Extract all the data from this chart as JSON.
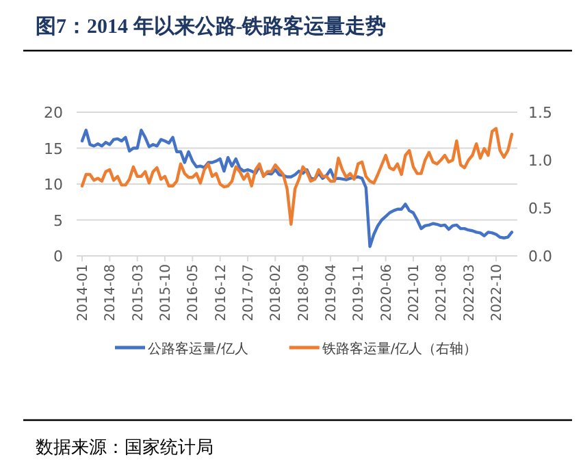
{
  "chart_data": {
    "type": "line",
    "title": "图7：2014 年以来公路-铁路客运量走势",
    "categories": [
      "2014-01",
      null,
      null,
      null,
      null,
      null,
      null,
      "2014-08",
      null,
      null,
      null,
      null,
      null,
      null,
      "2015-03",
      null,
      null,
      null,
      null,
      null,
      null,
      "2015-10",
      null,
      null,
      null,
      null,
      null,
      null,
      "2016-05",
      null,
      null,
      null,
      null,
      null,
      null,
      "2016-12",
      null,
      null,
      null,
      null,
      null,
      null,
      "2017-07",
      null,
      null,
      null,
      null,
      null,
      null,
      "2018-02",
      null,
      null,
      null,
      null,
      null,
      null,
      "2018-09",
      null,
      null,
      null,
      null,
      null,
      null,
      "2019-04",
      null,
      null,
      null,
      null,
      null,
      null,
      "2019-11",
      null,
      null,
      null,
      null,
      null,
      null,
      "2020-06",
      null,
      null,
      null,
      null,
      null,
      null,
      "2021-01",
      null,
      null,
      null,
      null,
      null,
      null,
      "2021-08",
      null,
      null,
      null,
      null,
      null,
      null,
      "2022-03",
      null,
      null,
      null,
      null,
      null,
      null,
      "2022-10",
      null,
      null,
      null,
      null
    ],
    "series": [
      {
        "name": "公路客运量/亿人",
        "color": "#4472c4",
        "values": [
          16,
          17.5,
          15.5,
          15.3,
          15.6,
          15.3,
          15.8,
          15.5,
          16.2,
          16.3,
          16,
          16.5,
          14.6,
          15,
          15,
          17.5,
          16.5,
          15.2,
          15.5,
          15.3,
          16.2,
          16,
          15.7,
          16.5,
          14.5,
          14.5,
          13,
          14.5,
          13.2,
          12.4,
          12.5,
          12.3,
          13,
          13,
          13.2,
          13.5,
          11.8,
          13.7,
          12.5,
          13.5,
          12.2,
          11.8,
          12,
          11.8,
          11.5,
          12.5,
          11.2,
          11.5,
          11.4,
          12,
          11.3,
          11.2,
          11,
          11,
          11.3,
          11.8,
          11.5,
          12,
          10.8,
          10.7,
          11.5,
          10.8,
          11.2,
          12,
          10.7,
          10.8,
          10.7,
          10.6,
          10.8,
          10.9,
          11,
          10.8,
          9.5,
          1.3,
          3,
          4.2,
          5,
          5.5,
          6,
          6.3,
          6.5,
          6.5,
          7.2,
          6.3,
          6,
          5,
          3.8,
          4.2,
          4.3,
          4.5,
          4.4,
          4.2,
          4.3,
          3.7,
          4.2,
          4.3,
          3.8,
          3.8,
          3.6,
          3.5,
          3.3,
          3.2,
          2.8,
          3.3,
          3.2,
          3.0,
          2.6,
          2.5,
          2.6,
          3.3
        ]
      },
      {
        "name": "铁路客运量/亿人（右轴）",
        "color": "#ed7d31",
        "axis": "y2",
        "values": [
          0.73,
          0.85,
          0.85,
          0.79,
          0.81,
          0.78,
          0.88,
          0.9,
          0.79,
          0.83,
          0.74,
          0.74,
          0.8,
          0.93,
          0.83,
          0.83,
          0.88,
          0.76,
          0.88,
          0.92,
          0.8,
          0.83,
          0.73,
          0.73,
          0.78,
          0.96,
          0.86,
          0.82,
          0.82,
          0.86,
          0.76,
          0.9,
          0.96,
          0.83,
          0.86,
          0.75,
          0.72,
          0.73,
          0.78,
          0.93,
          0.88,
          0.8,
          0.86,
          0.73,
          0.9,
          0.96,
          0.83,
          0.88,
          0.88,
          0.95,
          0.9,
          0.85,
          0.7,
          0.33,
          0.7,
          0.8,
          0.93,
          0.88,
          0.78,
          0.8,
          0.9,
          0.83,
          0.83,
          0.78,
          0.78,
          1.02,
          0.9,
          0.82,
          0.86,
          0.8,
          0.96,
          0.98,
          0.83,
          0.78,
          0.76,
          0.85,
          0.95,
          1.05,
          0.92,
          0.9,
          0.96,
          0.85,
          1.05,
          1.1,
          0.93,
          0.86,
          0.86,
          1.0,
          1.08,
          0.98,
          0.96,
          1.0,
          1.05,
          0.98,
          1.0,
          1.2,
          0.95,
          0.92,
          1.0,
          1.05,
          1.17,
          1.02,
          1.12,
          1.05,
          1.3,
          1.33,
          1.1,
          1.03,
          1.1,
          1.27
        ]
      }
    ],
    "ylim": [
      0,
      20
    ],
    "yticks": [
      0,
      5,
      10,
      15,
      20
    ],
    "y2lim": [
      0,
      1.5
    ],
    "y2ticks": [
      {
        "value": 0,
        "label": "0.0"
      },
      {
        "value": 0.5,
        "label": "0.5"
      },
      {
        "value": 1,
        "label": "1.0"
      },
      {
        "value": 1.5,
        "label": "1.5"
      }
    ],
    "grid": "y",
    "legend": "bottom",
    "annotations": [
      "数据来源：国家统计局"
    ]
  }
}
